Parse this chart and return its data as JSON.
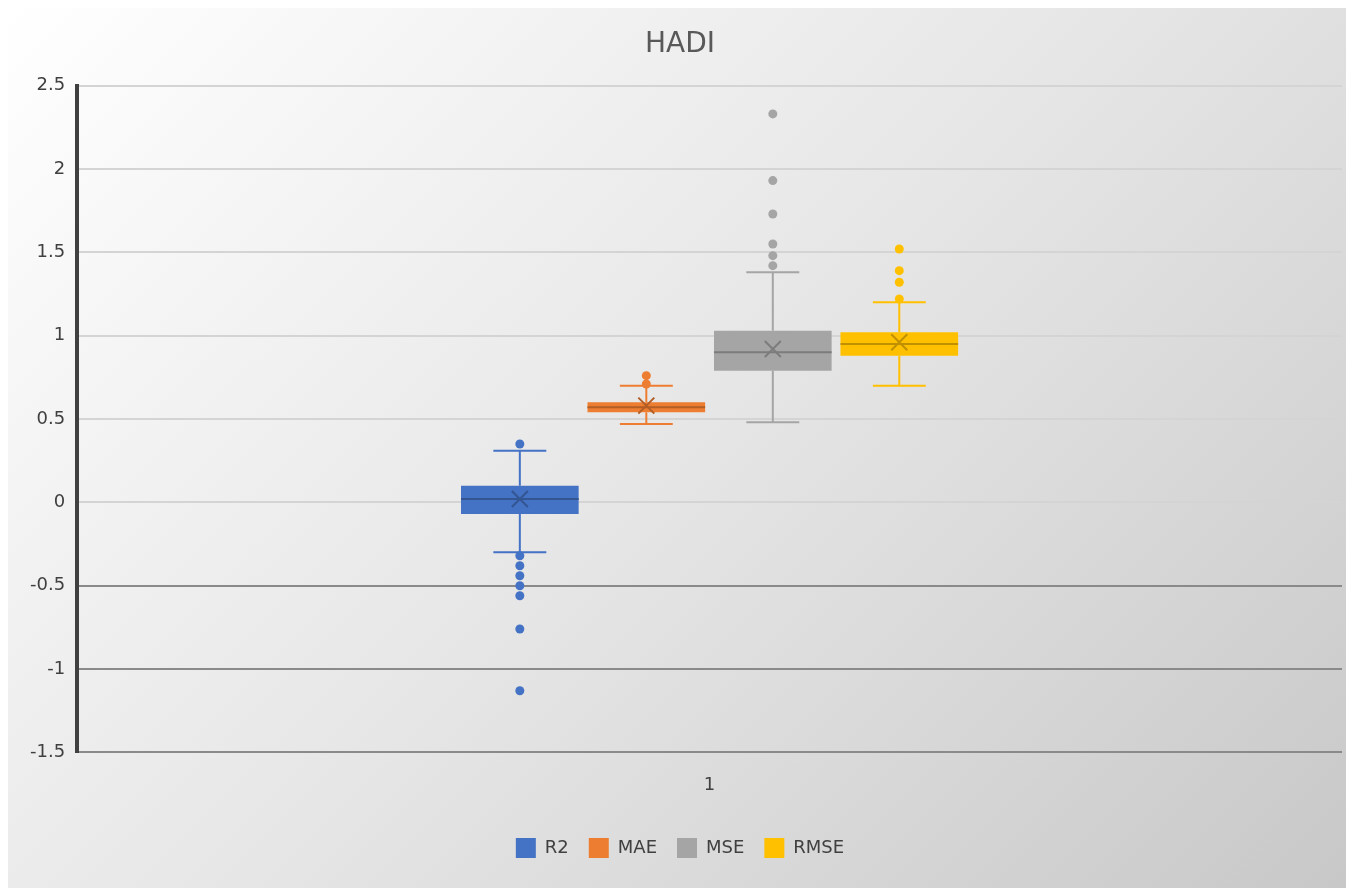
{
  "chart_data": {
    "type": "box",
    "title": "HADI",
    "categories": [
      "1"
    ],
    "ylim": [
      -1.5,
      2.5
    ],
    "yticks": [
      -1.5,
      -1,
      -0.5,
      0,
      0.5,
      1,
      1.5,
      2,
      2.5
    ],
    "grid": "y",
    "legend": "bottom",
    "marker": "circle",
    "series": [
      {
        "name": "R2",
        "color": "#4472c4",
        "boxes": [
          {
            "low": -0.3,
            "q1": -0.07,
            "median": 0.02,
            "q3": 0.1,
            "high": 0.31,
            "mean": 0.02,
            "outliers": [
              0.35,
              -0.32,
              -0.38,
              -0.44,
              -0.5,
              -0.56,
              -0.76,
              -1.13
            ]
          }
        ]
      },
      {
        "name": "MAE",
        "color": "#ed7d31",
        "boxes": [
          {
            "low": 0.47,
            "q1": 0.54,
            "median": 0.57,
            "q3": 0.6,
            "high": 0.7,
            "mean": 0.58,
            "outliers": [
              0.76,
              0.71
            ]
          }
        ]
      },
      {
        "name": "MSE",
        "color": "#a5a5a5",
        "boxes": [
          {
            "low": 0.48,
            "q1": 0.79,
            "median": 0.9,
            "q3": 1.03,
            "high": 1.38,
            "mean": 0.92,
            "outliers": [
              2.33,
              1.93,
              1.73,
              1.55,
              1.48,
              1.42
            ]
          }
        ]
      },
      {
        "name": "RMSE",
        "color": "#ffc000",
        "boxes": [
          {
            "low": 0.7,
            "q1": 0.88,
            "median": 0.95,
            "q3": 1.02,
            "high": 1.2,
            "mean": 0.96,
            "outliers": [
              1.52,
              1.39,
              1.32,
              1.22
            ]
          }
        ]
      }
    ]
  }
}
